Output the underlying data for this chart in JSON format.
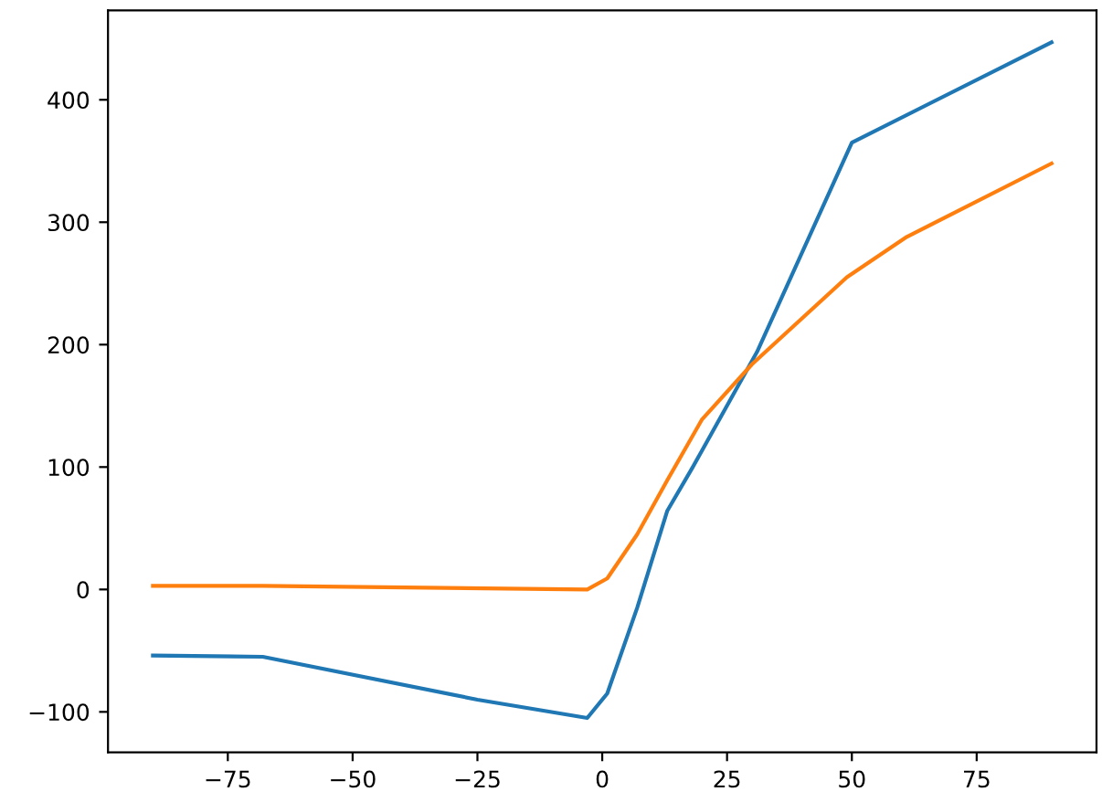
{
  "chart_data": {
    "type": "line",
    "xlim": [
      -99,
      99
    ],
    "ylim": [
      -133,
      473
    ],
    "xticks": [
      -75,
      -50,
      -25,
      0,
      25,
      50,
      75
    ],
    "yticks": [
      -100,
      0,
      100,
      200,
      300,
      400
    ],
    "grid": false,
    "legend": false,
    "series": [
      {
        "color": "#1f77b4",
        "x": [
          -90,
          -68,
          -25,
          -3,
          1,
          7,
          13,
          18,
          31,
          50,
          90
        ],
        "values": [
          -54,
          -55,
          -90,
          -105,
          -85,
          -15,
          64,
          99,
          194,
          365,
          447
        ]
      },
      {
        "color": "#ff7f0e",
        "x": [
          -90,
          -68,
          -3,
          1,
          7,
          13,
          20,
          30,
          49,
          61,
          90
        ],
        "values": [
          3,
          3,
          0,
          9,
          45,
          89,
          139,
          184,
          255,
          288,
          348
        ]
      }
    ]
  }
}
